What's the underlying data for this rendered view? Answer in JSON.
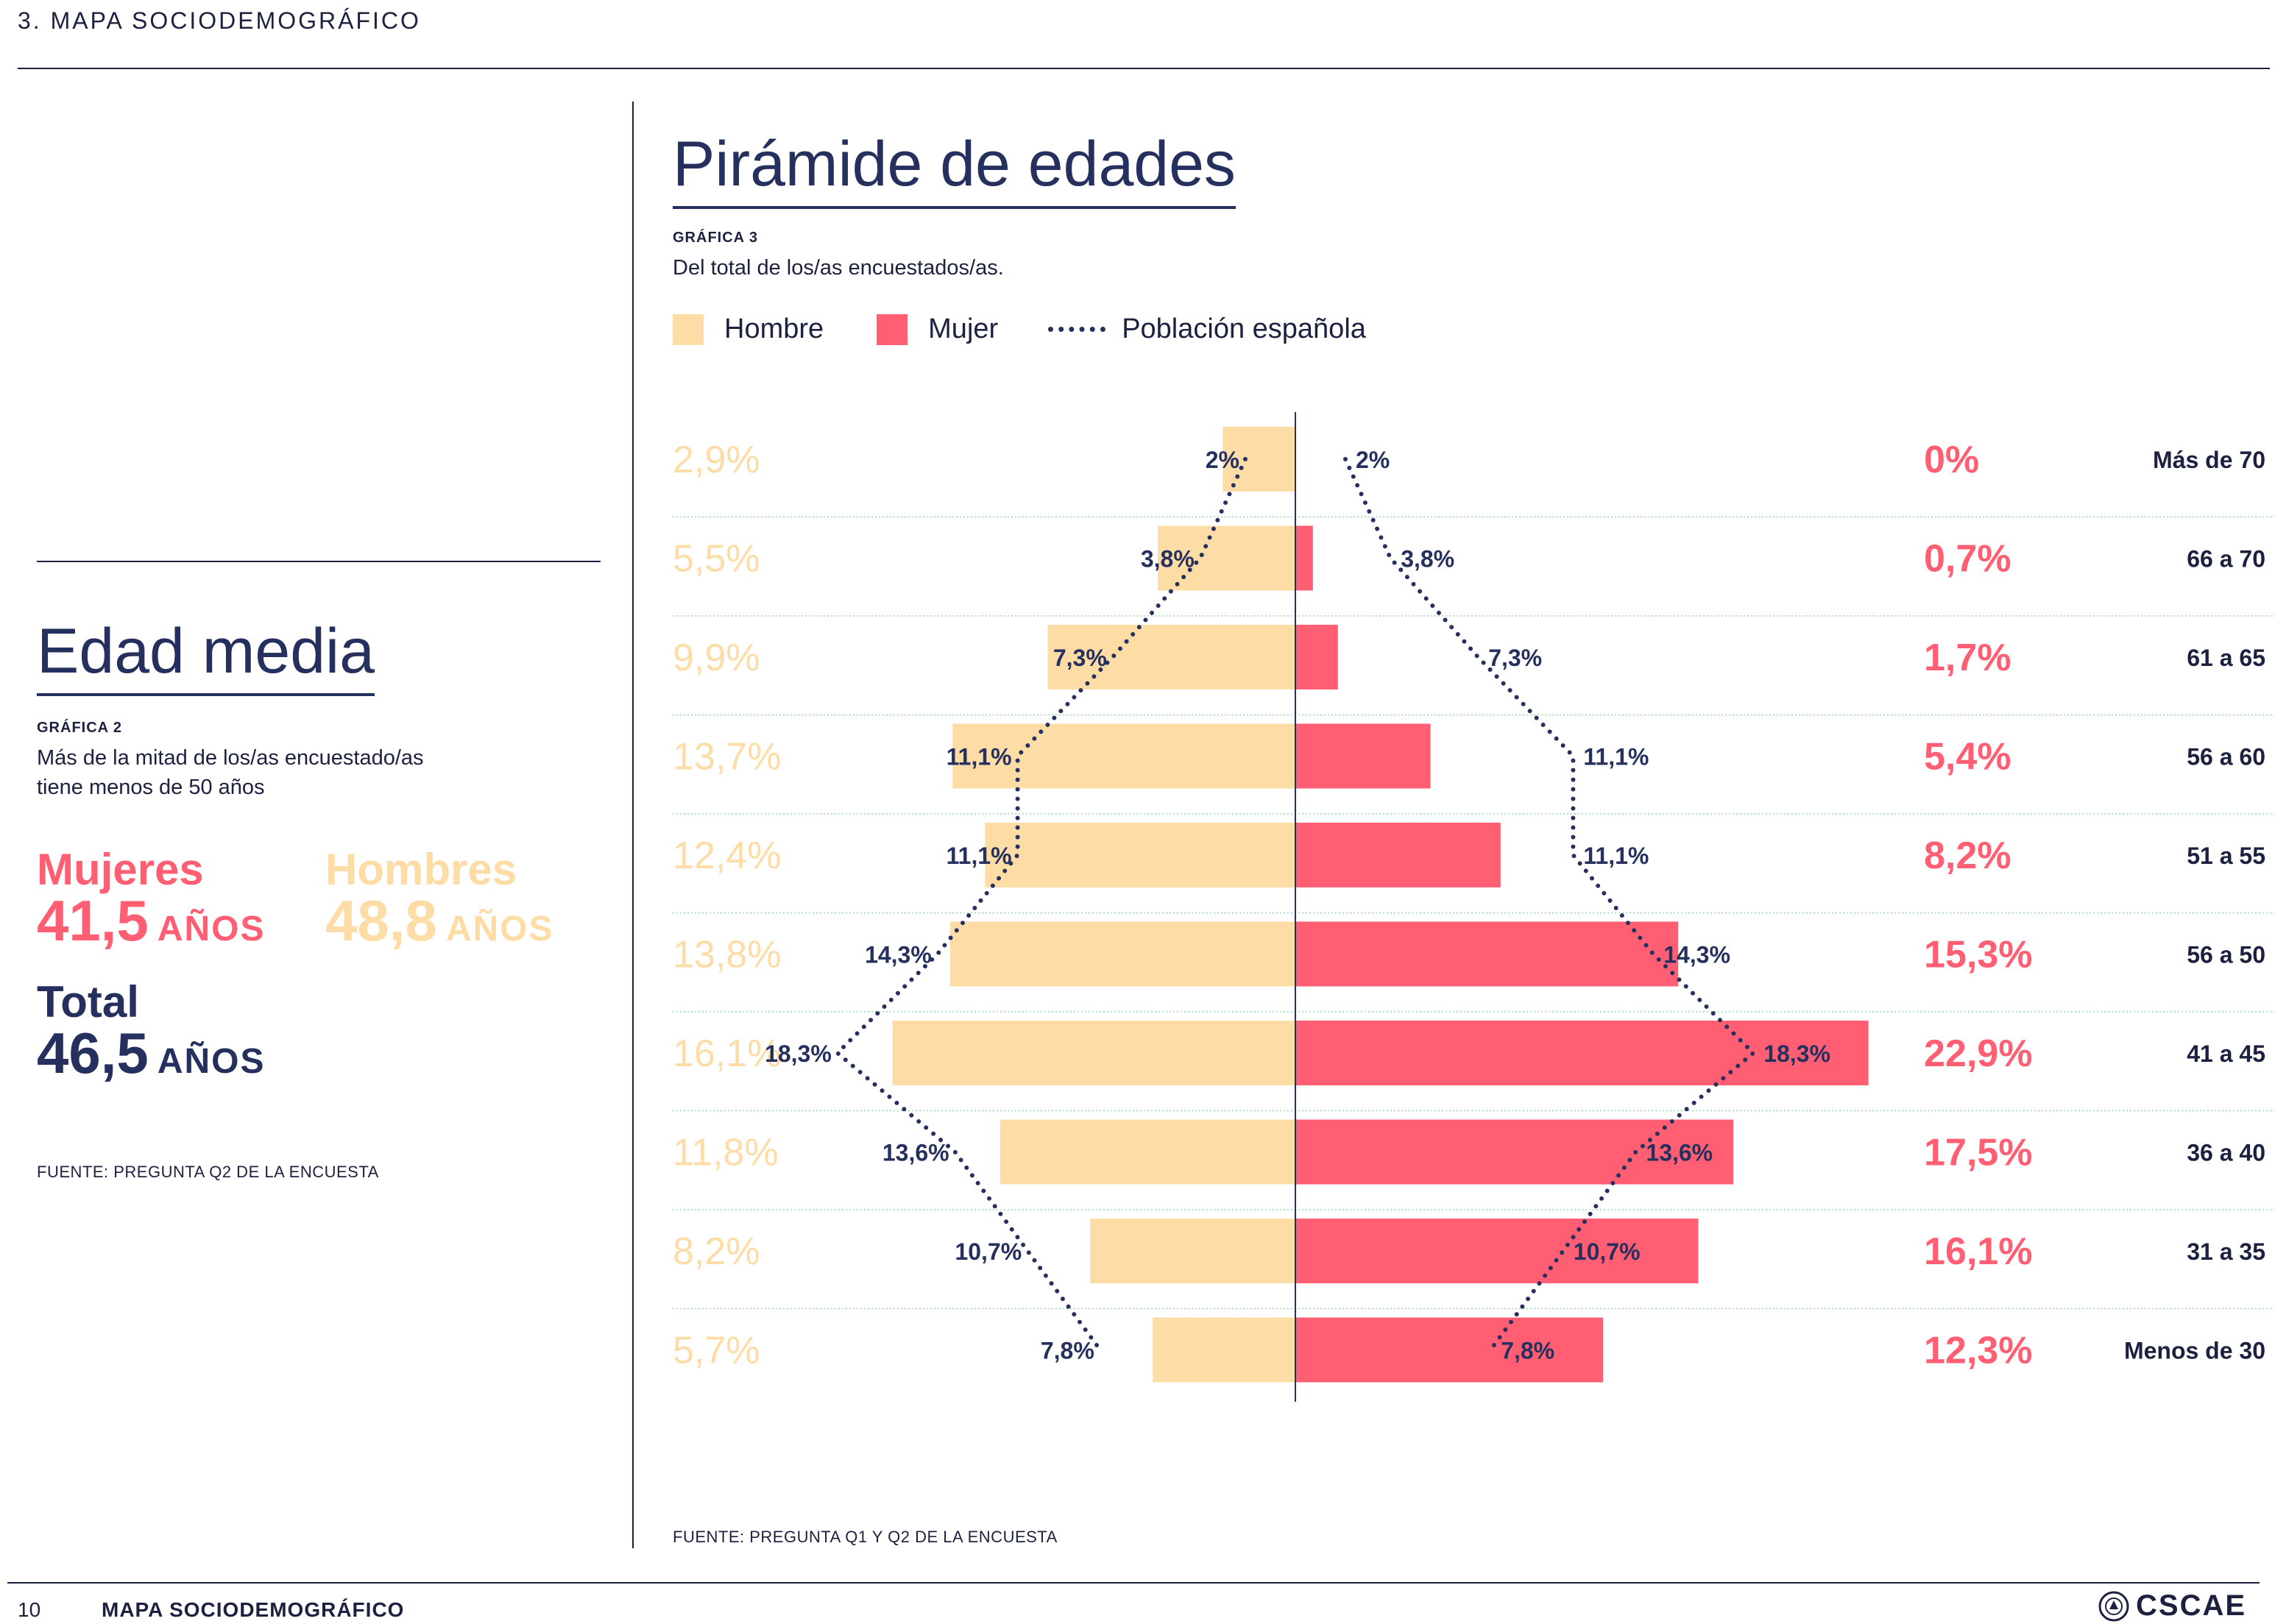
{
  "header": {
    "section": "3. MAPA SOCIODEMOGRÁFICO"
  },
  "left": {
    "title": "Edad media",
    "grafica": "GRÁFICA 2",
    "description_line1": "Más de la mitad de los/as encuestado/as",
    "description_line2": "tiene menos de 50 años",
    "women_label": "Mujeres",
    "women_value": "41,5",
    "men_label": "Hombres",
    "men_value": "48,8",
    "total_label": "Total",
    "total_value": "46,5",
    "unit": "AÑOS",
    "source": "FUENTE: PREGUNTA Q2 DE LA ENCUESTA"
  },
  "right": {
    "title": "Pirámide de edades",
    "grafica": "GRÁFICA 3",
    "description": "Del total de los/as encuestados/as.",
    "legend": {
      "men": "Hombre",
      "women": "Mujer",
      "population": "Población española"
    },
    "source": "FUENTE: PREGUNTA Q1 Y Q2 DE LA ENCUESTA"
  },
  "colors": {
    "men": "#fddca6",
    "women": "#ff5e73",
    "navy": "#26305e",
    "grid": "#9fd6ba"
  },
  "chart_data": {
    "type": "bar",
    "orientation": "horizontal-pyramid",
    "categories": [
      "Más de 70",
      "66 a 70",
      "61 a 65",
      "56 a 60",
      "51 a 55",
      "56 a 50",
      "41 a 45",
      "36 a 40",
      "31 a 35",
      "Menos de 30"
    ],
    "series": [
      {
        "name": "Hombre",
        "values": [
          2.9,
          5.5,
          9.9,
          13.7,
          12.4,
          13.8,
          16.1,
          11.8,
          8.2,
          5.7
        ],
        "labels": [
          "2,9%",
          "5,5%",
          "9,9%",
          "13,7%",
          "12,4%",
          "13,8%",
          "16,1%",
          "11,8%",
          "8,2%",
          "5,7%"
        ]
      },
      {
        "name": "Mujer",
        "values": [
          0,
          0.7,
          1.7,
          5.4,
          8.2,
          15.3,
          22.9,
          17.5,
          16.1,
          12.3
        ],
        "labels": [
          "0%",
          "0,7%",
          "1,7%",
          "5,4%",
          "8,2%",
          "15,3%",
          "22,9%",
          "17,5%",
          "16,1%",
          "12,3%"
        ]
      },
      {
        "name": "Población española",
        "values": [
          2,
          3.8,
          7.3,
          11.1,
          11.1,
          14.3,
          18.3,
          13.6,
          10.7,
          7.8
        ],
        "labels": [
          "2%",
          "3,8%",
          "7,3%",
          "11,1%",
          "11,1%",
          "14,3%",
          "18,3%",
          "13,6%",
          "10,7%",
          "7,8%"
        ]
      }
    ],
    "legend_position": "top-left",
    "grid": true
  },
  "footer": {
    "page": "10",
    "title": "MAPA SOCIODEMOGRÁFICO",
    "logo": "CSCAE"
  }
}
